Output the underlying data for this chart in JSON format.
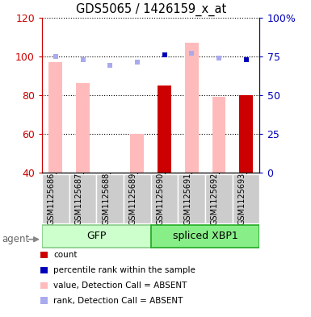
{
  "title": "GDS5065 / 1426159_x_at",
  "samples": [
    "GSM1125686",
    "GSM1125687",
    "GSM1125688",
    "GSM1125689",
    "GSM1125690",
    "GSM1125691",
    "GSM1125692",
    "GSM1125693"
  ],
  "absent_value": [
    97,
    86,
    null,
    60,
    null,
    107,
    79,
    null
  ],
  "absent_rank": [
    75,
    73,
    69,
    71,
    null,
    77,
    74,
    null
  ],
  "present_value": [
    null,
    null,
    null,
    null,
    85,
    null,
    null,
    80
  ],
  "present_rank": [
    null,
    null,
    null,
    null,
    76,
    null,
    null,
    73
  ],
  "ylim_left": [
    40,
    120
  ],
  "ylim_right": [
    0,
    100
  ],
  "left_ticks": [
    40,
    60,
    80,
    100,
    120
  ],
  "right_ticks": [
    0,
    25,
    50,
    75,
    100
  ],
  "left_ticklabels": [
    "40",
    "60",
    "80",
    "100",
    "120"
  ],
  "right_ticklabels": [
    "0",
    "25",
    "50",
    "75",
    "100%"
  ],
  "absent_bar_color": "#ffbbbb",
  "absent_rank_color": "#aaaaee",
  "present_bar_color": "#cc0000",
  "present_rank_color": "#0000bb",
  "bar_width": 0.5,
  "rank_marker_size": 5,
  "group_gfp_range": [
    0,
    3
  ],
  "group_xbp1_range": [
    4,
    7
  ],
  "group_names": [
    "GFP",
    "spliced XBP1"
  ],
  "group_light_colors": [
    "#ccffcc",
    "#88ee88"
  ],
  "group_dark_colors": [
    "#88cc88",
    "#22aa22"
  ],
  "legend_items": [
    {
      "label": "count",
      "color": "#cc0000"
    },
    {
      "label": "percentile rank within the sample",
      "color": "#0000bb"
    },
    {
      "label": "value, Detection Call = ABSENT",
      "color": "#ffbbbb"
    },
    {
      "label": "rank, Detection Call = ABSENT",
      "color": "#aaaaee"
    }
  ],
  "left_axis_color": "#cc0000",
  "right_axis_color": "#0000bb",
  "sample_box_color": "#cccccc",
  "agent_label": "agent"
}
